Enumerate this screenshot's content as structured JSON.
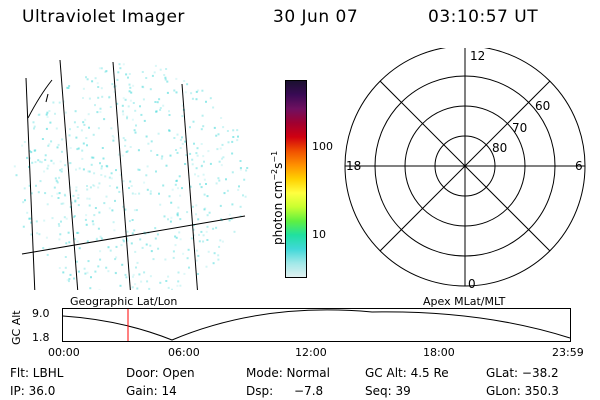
{
  "header": {
    "instrument": "Ultraviolet Imager",
    "date": "30 Jun 07",
    "time": "03:10:57 UT"
  },
  "colorbar": {
    "unit_label": "photon cm",
    "unit_sup1": "−2",
    "unit_mid": "s",
    "unit_sup2": "−1",
    "tick_100": "100",
    "tick_10": "10",
    "colors": [
      "#1a1030",
      "#3a0a55",
      "#701060",
      "#a00030",
      "#d00010",
      "#f05000",
      "#ff9000",
      "#ffd000",
      "#ffff40",
      "#c8ff30",
      "#60f040",
      "#20e0a0",
      "#40d8d8",
      "#a0e8e8",
      "#e0f0f0"
    ]
  },
  "polar_plot": {
    "mlt_top": "12",
    "mlt_left": "18",
    "mlt_right": "6",
    "mlt_bottom": "0",
    "lat_60": "60",
    "lat_70": "70",
    "lat_80": "80"
  },
  "geo_plot": {
    "emission_color": "#40d8d8"
  },
  "altitude_panel": {
    "left_title": "Geographic Lat/Lon",
    "right_title": "Apex MLat/MLT",
    "axis_label": "GC Alt",
    "y_max": "9.0",
    "y_min": "1.8",
    "x_ticks": [
      "00:00",
      "06:00",
      "12:00",
      "18:00",
      "23:59"
    ],
    "current_time_marker_color": "#ff0000"
  },
  "footer": {
    "flt": "Flt: LBHL",
    "door": "Door: Open",
    "mode": "Mode: Normal",
    "gc_alt": "GC Alt: 4.5 Re",
    "glat": "GLat: −38.2",
    "ip": "IP: 36.0",
    "gain": "Gain: 14",
    "dsp_label": "Dsp:",
    "dsp_value": "−7.8",
    "seq": "Seq: 39",
    "glon": "GLon: 350.3"
  }
}
